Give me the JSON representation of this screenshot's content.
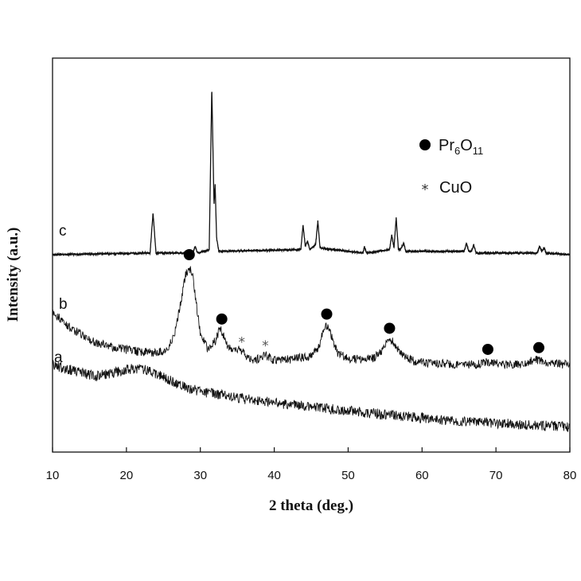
{
  "chart_data": {
    "type": "line",
    "xlabel": "2 theta (deg.)",
    "ylabel": "Intensity (a.u.)",
    "xlim": [
      10,
      80
    ],
    "xticks": [
      "10",
      "20",
      "30",
      "40",
      "50",
      "60",
      "70",
      "80"
    ],
    "grid": false,
    "legend_position": "top-right",
    "legend": [
      {
        "marker": "filled-circle",
        "base": "Pr",
        "sub1": "6",
        "mid": "O",
        "sub2": "11"
      },
      {
        "marker": "asterisk",
        "text": "CuO"
      }
    ],
    "series": [
      {
        "label": "c",
        "x": [
          10,
          23.2,
          23.6,
          24.0,
          29.0,
          29.3,
          29.6,
          31.2,
          31.55,
          31.85,
          32.0,
          32.2,
          32.5,
          43.6,
          43.9,
          44.2,
          44.5,
          44.8,
          45.6,
          45.9,
          46.2,
          52.0,
          52.2,
          52.5,
          55.6,
          55.9,
          56.2,
          56.5,
          56.8,
          57.1,
          57.5,
          57.8,
          58.1,
          65.7,
          66.0,
          66.3,
          66.7,
          67.0,
          67.3,
          75.6,
          75.9,
          76.2,
          76.5,
          76.8,
          80
        ],
        "y": [
          0.0,
          0.01,
          0.25,
          0.01,
          0.01,
          0.05,
          0.01,
          0.03,
          1.0,
          0.3,
          0.42,
          0.1,
          0.02,
          0.03,
          0.18,
          0.05,
          0.08,
          0.03,
          0.06,
          0.2,
          0.04,
          0.01,
          0.05,
          0.01,
          0.03,
          0.12,
          0.04,
          0.22,
          0.03,
          0.03,
          0.07,
          0.02,
          0.02,
          0.02,
          0.07,
          0.02,
          0.02,
          0.06,
          0.01,
          0.01,
          0.05,
          0.02,
          0.04,
          0.01,
          0.0
        ]
      },
      {
        "label": "b",
        "x": [
          10,
          12,
          14,
          16,
          18,
          20,
          22,
          24,
          25.5,
          26.5,
          27.5,
          28.0,
          28.5,
          29.0,
          29.5,
          30.0,
          31.0,
          32.0,
          32.6,
          33.0,
          33.5,
          34.5,
          35.3,
          36.0,
          36.8,
          38.0,
          38.8,
          39.8,
          41.0,
          43.0,
          45.0,
          46.0,
          46.6,
          47.0,
          47.6,
          48.5,
          50.0,
          52.0,
          53.5,
          54.5,
          55.3,
          55.8,
          56.4,
          57.5,
          59.0,
          62.0,
          65.0,
          67.5,
          68.5,
          69.3,
          70.5,
          73.0,
          74.5,
          75.3,
          76.0,
          77.0,
          80
        ],
        "y": [
          0.55,
          0.4,
          0.3,
          0.22,
          0.18,
          0.15,
          0.13,
          0.12,
          0.15,
          0.3,
          0.7,
          0.92,
          1.0,
          0.9,
          0.6,
          0.32,
          0.16,
          0.24,
          0.36,
          0.33,
          0.22,
          0.13,
          0.16,
          0.1,
          0.05,
          0.06,
          0.1,
          0.05,
          0.05,
          0.06,
          0.09,
          0.17,
          0.33,
          0.4,
          0.33,
          0.12,
          0.06,
          0.05,
          0.07,
          0.13,
          0.23,
          0.25,
          0.2,
          0.09,
          0.03,
          0.01,
          0.0,
          0.0,
          0.02,
          0.03,
          0.0,
          0.0,
          0.03,
          0.05,
          0.04,
          0.01,
          0.0
        ]
      },
      {
        "label": "a",
        "x": [
          10,
          12,
          14,
          16,
          18,
          20,
          22,
          24,
          26,
          28,
          30,
          32,
          34,
          36,
          38,
          40,
          44,
          48,
          52,
          56,
          60,
          64,
          68,
          72,
          76,
          80
        ],
        "y": [
          1.0,
          0.93,
          0.86,
          0.82,
          0.86,
          0.92,
          0.94,
          0.86,
          0.74,
          0.64,
          0.58,
          0.54,
          0.5,
          0.46,
          0.43,
          0.4,
          0.35,
          0.3,
          0.25,
          0.2,
          0.16,
          0.12,
          0.09,
          0.07,
          0.04,
          0.02
        ]
      }
    ],
    "markers": {
      "pr6o11_circles_on_b": [
        28.5,
        32.9,
        47.1,
        55.6,
        68.9,
        75.8
      ],
      "cuo_stars_on_b": [
        35.6,
        38.8
      ]
    }
  }
}
